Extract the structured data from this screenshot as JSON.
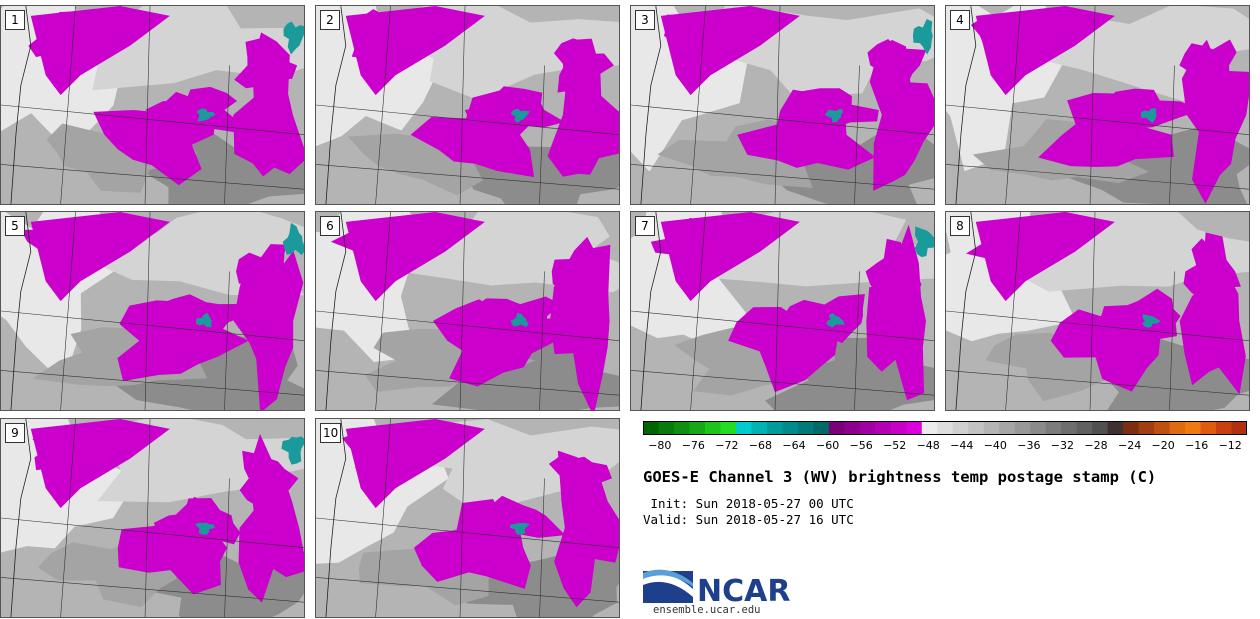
{
  "panels": [
    {
      "label": "1"
    },
    {
      "label": "2"
    },
    {
      "label": "3"
    },
    {
      "label": "4"
    },
    {
      "label": "5"
    },
    {
      "label": "6"
    },
    {
      "label": "7"
    },
    {
      "label": "8"
    },
    {
      "label": "9"
    },
    {
      "label": "10"
    }
  ],
  "colorbar": {
    "tick_labels": [
      "-80",
      "-76",
      "-72",
      "-68",
      "-64",
      "-60",
      "-56",
      "-52",
      "-48",
      "-44",
      "-40",
      "-36",
      "-32",
      "-28",
      "-24",
      "-20",
      "-16",
      "-12"
    ],
    "min": -82,
    "max": -10,
    "bin_colors": [
      "#006400",
      "#0a7a0a",
      "#108f10",
      "#16a816",
      "#1cc41c",
      "#22dd22",
      "#00cccc",
      "#00b4b4",
      "#009c9c",
      "#008c8c",
      "#007a7a",
      "#006a6a",
      "#7a007a",
      "#8c008c",
      "#a000a0",
      "#b400b4",
      "#c800c8",
      "#dc00dc",
      "#ececec",
      "#dedede",
      "#d0d0d0",
      "#c2c2c2",
      "#b4b4b4",
      "#a6a6a6",
      "#989898",
      "#8a8a8a",
      "#7c7c7c",
      "#6e6e6e",
      "#606060",
      "#505050",
      "#403030",
      "#7a3010",
      "#a04010",
      "#c05010",
      "#e06a10",
      "#f07a10",
      "#e05a10",
      "#c84010",
      "#b03010"
    ]
  },
  "title": "GOES-E Channel 3 (WV) brightness temp postage stamp (C)",
  "init": " Init: Sun 2018-05-27 00 UTC",
  "valid": "Valid: Sun 2018-05-27 16 UTC",
  "logo": {
    "text": "NCAR",
    "url": "ensemble.ucar.edu"
  },
  "colors": {
    "moist": "#cc00cc",
    "cold_core": "#1a9a9a",
    "dry_light": "#e8e8e8",
    "dry_mid": "#b4b4b4",
    "dry_dark": "#8c8c8c",
    "logo_blue": "#1e3f8c"
  }
}
